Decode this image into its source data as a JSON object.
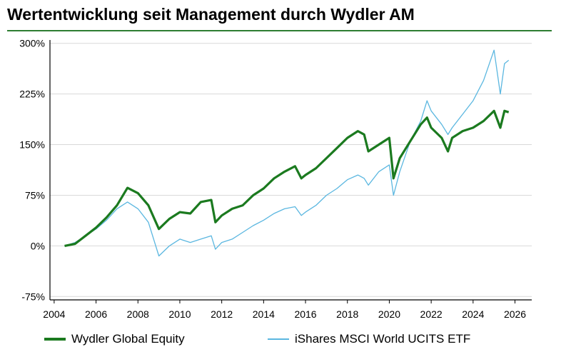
{
  "title": "Wertentwicklung seit Management durch Wydler AM",
  "colors": {
    "rule": "#2e7d32",
    "series_1": "#1b7a1f",
    "series_2": "#5bb7e0",
    "grid": "#d9d9d9",
    "axis": "#000000"
  },
  "chart_data": {
    "type": "line",
    "title": "Wertentwicklung seit Management durch Wydler AM",
    "xlabel": "",
    "ylabel": "",
    "xlim": [
      2003.8,
      2026.8
    ],
    "ylim": [
      -80,
      305
    ],
    "x_ticks": [
      2004,
      2006,
      2008,
      2010,
      2012,
      2014,
      2016,
      2018,
      2020,
      2022,
      2024,
      2026
    ],
    "y_ticks": [
      300,
      225,
      150,
      75,
      0,
      -75
    ],
    "y_tick_labels": [
      "300%",
      "225%",
      "150%",
      "75%",
      "0%",
      "-75%"
    ],
    "grid": "horizontal",
    "legend_position": "bottom",
    "series": [
      {
        "name": "Wydler Global Equity",
        "color": "#1b7a1f",
        "points": [
          [
            2004.5,
            0
          ],
          [
            2005.0,
            3
          ],
          [
            2005.5,
            15
          ],
          [
            2006.0,
            27
          ],
          [
            2006.5,
            42
          ],
          [
            2007.0,
            60
          ],
          [
            2007.5,
            86
          ],
          [
            2008.0,
            78
          ],
          [
            2008.5,
            60
          ],
          [
            2009.0,
            25
          ],
          [
            2009.5,
            40
          ],
          [
            2010.0,
            50
          ],
          [
            2010.5,
            48
          ],
          [
            2011.0,
            65
          ],
          [
            2011.5,
            68
          ],
          [
            2011.7,
            35
          ],
          [
            2012.0,
            45
          ],
          [
            2012.5,
            55
          ],
          [
            2013.0,
            60
          ],
          [
            2013.5,
            75
          ],
          [
            2014.0,
            85
          ],
          [
            2014.5,
            100
          ],
          [
            2015.0,
            110
          ],
          [
            2015.5,
            118
          ],
          [
            2015.8,
            100
          ],
          [
            2016.0,
            105
          ],
          [
            2016.5,
            115
          ],
          [
            2017.0,
            130
          ],
          [
            2017.5,
            145
          ],
          [
            2018.0,
            160
          ],
          [
            2018.5,
            170
          ],
          [
            2018.8,
            165
          ],
          [
            2019.0,
            140
          ],
          [
            2019.5,
            150
          ],
          [
            2020.0,
            160
          ],
          [
            2020.2,
            100
          ],
          [
            2020.5,
            130
          ],
          [
            2021.0,
            155
          ],
          [
            2021.5,
            180
          ],
          [
            2021.8,
            190
          ],
          [
            2022.0,
            175
          ],
          [
            2022.5,
            160
          ],
          [
            2022.8,
            140
          ],
          [
            2023.0,
            160
          ],
          [
            2023.5,
            170
          ],
          [
            2024.0,
            175
          ],
          [
            2024.5,
            185
          ],
          [
            2025.0,
            200
          ],
          [
            2025.3,
            175
          ],
          [
            2025.5,
            200
          ],
          [
            2025.7,
            198
          ]
        ]
      },
      {
        "name": "iShares MSCI World UCITS ETF",
        "color": "#5bb7e0",
        "points": [
          [
            2004.5,
            0
          ],
          [
            2005.0,
            5
          ],
          [
            2005.5,
            15
          ],
          [
            2006.0,
            25
          ],
          [
            2006.5,
            38
          ],
          [
            2007.0,
            55
          ],
          [
            2007.5,
            65
          ],
          [
            2008.0,
            55
          ],
          [
            2008.5,
            35
          ],
          [
            2009.0,
            -15
          ],
          [
            2009.5,
            0
          ],
          [
            2010.0,
            10
          ],
          [
            2010.5,
            5
          ],
          [
            2011.0,
            10
          ],
          [
            2011.5,
            15
          ],
          [
            2011.7,
            -5
          ],
          [
            2012.0,
            5
          ],
          [
            2012.5,
            10
          ],
          [
            2013.0,
            20
          ],
          [
            2013.5,
            30
          ],
          [
            2014.0,
            38
          ],
          [
            2014.5,
            48
          ],
          [
            2015.0,
            55
          ],
          [
            2015.5,
            58
          ],
          [
            2015.8,
            45
          ],
          [
            2016.0,
            50
          ],
          [
            2016.5,
            60
          ],
          [
            2017.0,
            75
          ],
          [
            2017.5,
            85
          ],
          [
            2018.0,
            98
          ],
          [
            2018.5,
            105
          ],
          [
            2018.8,
            100
          ],
          [
            2019.0,
            90
          ],
          [
            2019.5,
            110
          ],
          [
            2020.0,
            120
          ],
          [
            2020.2,
            75
          ],
          [
            2020.5,
            110
          ],
          [
            2021.0,
            155
          ],
          [
            2021.5,
            185
          ],
          [
            2021.8,
            215
          ],
          [
            2022.0,
            200
          ],
          [
            2022.5,
            180
          ],
          [
            2022.8,
            165
          ],
          [
            2023.0,
            175
          ],
          [
            2023.5,
            195
          ],
          [
            2024.0,
            215
          ],
          [
            2024.5,
            245
          ],
          [
            2025.0,
            290
          ],
          [
            2025.3,
            225
          ],
          [
            2025.5,
            270
          ],
          [
            2025.7,
            275
          ]
        ]
      }
    ]
  }
}
